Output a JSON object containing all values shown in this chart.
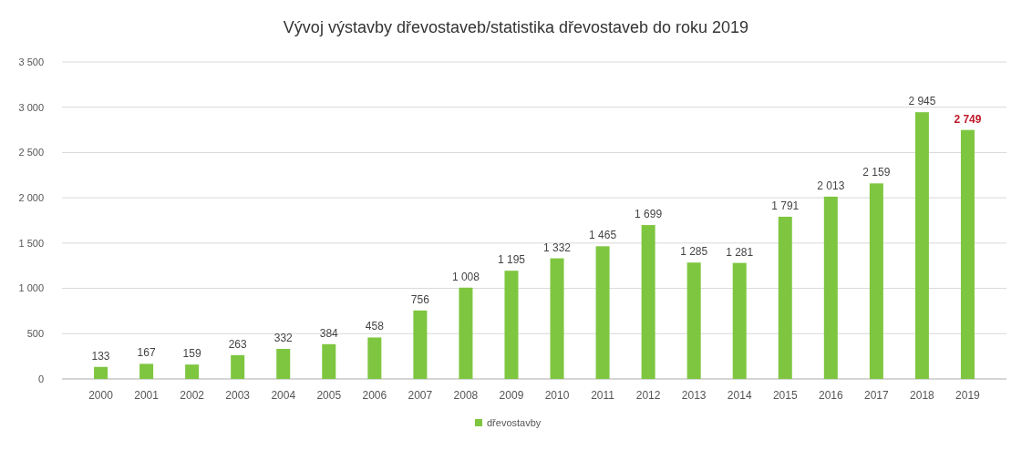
{
  "chart_data": {
    "type": "bar",
    "title": "Vývoj výstavby dřevostaveb/statistika dřevostaveb do roku 2019",
    "categories": [
      "2000",
      "2001",
      "2002",
      "2003",
      "2004",
      "2005",
      "2006",
      "2007",
      "2008",
      "2009",
      "2010",
      "2011",
      "2012",
      "2013",
      "2014",
      "2015",
      "2016",
      "2017",
      "2018",
      "2019"
    ],
    "series": [
      {
        "name": "dřevostavby",
        "color": "#7ec640",
        "values": [
          133,
          167,
          159,
          263,
          332,
          384,
          458,
          756,
          1008,
          1195,
          1332,
          1465,
          1699,
          1285,
          1281,
          1791,
          2013,
          2159,
          2945,
          2749
        ],
        "value_labels": [
          "133",
          "167",
          "159",
          "263",
          "332",
          "384",
          "458",
          "756",
          "1 008",
          "1 195",
          "1 332",
          "1 465",
          "1 699",
          "1 285",
          "1 281",
          "1 791",
          "2 013",
          "2 159",
          "2 945",
          "2 749"
        ]
      }
    ],
    "ylim": [
      0,
      3500
    ],
    "yticks": [
      0,
      {
        "value": 500,
        "label": "500"
      },
      {
        "value": 1000,
        "label": "1 000"
      },
      {
        "value": 1500,
        "label": "1 500"
      },
      {
        "value": 2000,
        "label": "2 000"
      },
      {
        "value": 2500,
        "label": "2 500"
      },
      {
        "value": 3000,
        "label": "3 000"
      },
      {
        "value": 3500,
        "label": "3 500"
      }
    ],
    "grid": "y",
    "legend": "bottom"
  }
}
